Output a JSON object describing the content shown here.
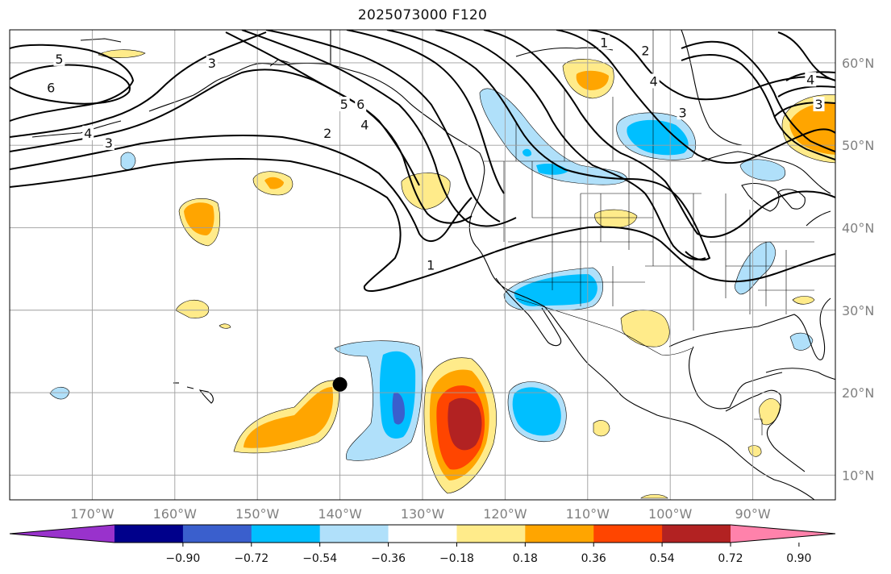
{
  "title": "2025073000 F120",
  "map": {
    "projection": "PlateCarree",
    "lon_range": [
      -180,
      -80
    ],
    "lat_range": [
      7,
      64
    ],
    "lon_ticks": [
      "170°W",
      "160°W",
      "150°W",
      "140°W",
      "130°W",
      "120°W",
      "110°W",
      "100°W",
      "90°W"
    ],
    "lat_ticks": [
      "10°N",
      "20°N",
      "30°N",
      "40°N",
      "50°N",
      "60°N"
    ],
    "gridlines": true,
    "colors": {
      "coast": "#000000",
      "grid": "#9e9e9e",
      "contour": "#000000",
      "neg_weak": "#b0e0fa",
      "neg_mid": "#00bfff",
      "neg_strong": "#3a5fcd",
      "neg_stronger": "#00008b",
      "pos_weak": "#ffeb8a",
      "pos_mid": "#ffa500",
      "pos_strong": "#ff4500",
      "pos_stronger": "#b22222",
      "marker": "#000000"
    }
  },
  "contour_labels": [
    {
      "text": "5",
      "lon": -174,
      "lat": 60.5
    },
    {
      "text": "6",
      "lon": -175,
      "lat": 57
    },
    {
      "text": "4",
      "lon": -170.5,
      "lat": 51.5
    },
    {
      "text": "3",
      "lon": -168,
      "lat": 50.3
    },
    {
      "text": "2",
      "lon": -141.5,
      "lat": 51.5
    },
    {
      "text": "3",
      "lon": -155.5,
      "lat": 60
    },
    {
      "text": "5",
      "lon": -139.5,
      "lat": 55
    },
    {
      "text": "6",
      "lon": -137.5,
      "lat": 55
    },
    {
      "text": "4",
      "lon": -137,
      "lat": 52.5
    },
    {
      "text": "1",
      "lon": -129,
      "lat": 35.5
    },
    {
      "text": "1",
      "lon": -108,
      "lat": 62.5
    },
    {
      "text": "2",
      "lon": -103,
      "lat": 61.5
    },
    {
      "text": "4",
      "lon": -102,
      "lat": 57.8
    },
    {
      "text": "3",
      "lon": -98.5,
      "lat": 54
    },
    {
      "text": "3",
      "lon": -82,
      "lat": 55
    },
    {
      "text": "4",
      "lon": -83,
      "lat": 58
    }
  ],
  "marker": {
    "lon": -140,
    "lat": 21
  },
  "colorbar": {
    "tick_labels": [
      "−0.90",
      "−0.72",
      "−0.54",
      "−0.36",
      "−0.18",
      "0.18",
      "0.36",
      "0.54",
      "0.72",
      "0.90"
    ],
    "colors": [
      "#9932cc",
      "#00008b",
      "#3a5fcd",
      "#00bfff",
      "#b0e0fa",
      "#ffffff",
      "#ffeb8a",
      "#ffa500",
      "#ff4500",
      "#b22222",
      "#ff82ab"
    ]
  }
}
